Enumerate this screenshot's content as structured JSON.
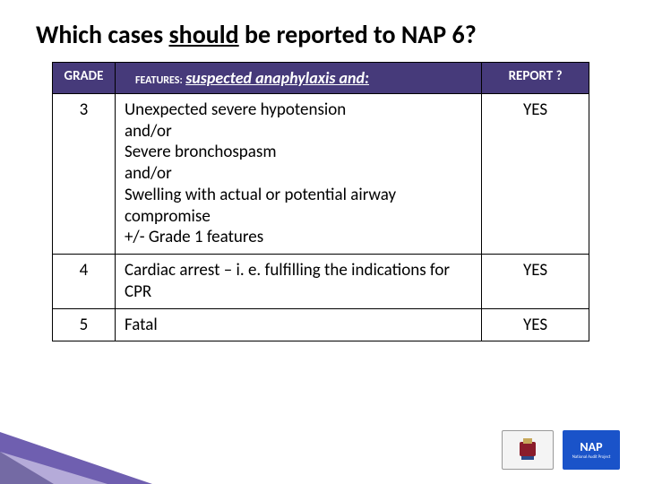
{
  "title_pre": "Which cases ",
  "title_underline": "should",
  "title_post": " be reported to NAP 6?",
  "columns": {
    "grade": "GRADE",
    "features_prefix": "FEATURES:",
    "features_main": "suspected anaphylaxis and:",
    "report": "REPORT ?"
  },
  "rows": [
    {
      "grade": "3",
      "features": "Unexpected severe hypotension\nand/or\nSevere bronchospasm\nand/or\nSwelling with actual or potential airway compromise\n+/- Grade 1 features",
      "report": "YES"
    },
    {
      "grade": "4",
      "features": "Cardiac arrest – i. e. fulfilling the indications for CPR",
      "report": "YES"
    },
    {
      "grade": "5",
      "features": "Fatal",
      "report": "YES"
    }
  ],
  "logos": {
    "rcoa": "RCoA",
    "nap": "NAP",
    "nap_sub": "National Audit Project"
  },
  "colors": {
    "header_bg": "#463a7a",
    "accent_main": "#6f5fb0",
    "accent_light": "#bdb4de",
    "nap_bg": "#1a53c9"
  }
}
